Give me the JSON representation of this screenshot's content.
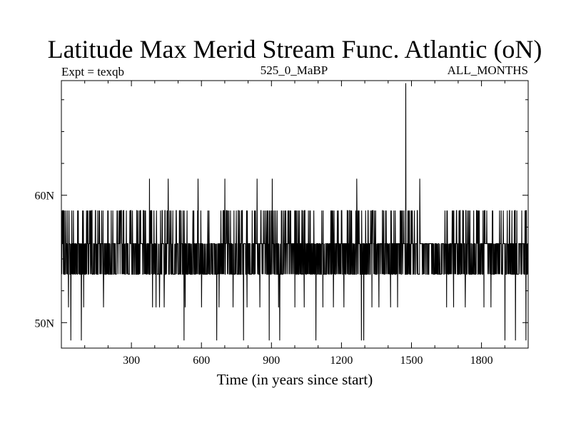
{
  "chart_data": {
    "type": "line",
    "title": "Latitude Max Merid Stream Func. Atlantic (oN)",
    "subtitle_left": "Expt = texqb",
    "subtitle_center": "525_0_MaBP",
    "subtitle_right": "ALL_MONTHS",
    "xlabel": "Time (in years since start)",
    "ylabel": "",
    "xlim": [
      0,
      2000
    ],
    "ylim": [
      48,
      69
    ],
    "x_ticks": [
      300,
      600,
      900,
      1200,
      1500,
      1800
    ],
    "x_tick_labels": [
      "300",
      "600",
      "900",
      "1200",
      "1500",
      "1800"
    ],
    "x_minor_step": 100,
    "y_ticks": [
      50,
      60
    ],
    "y_tick_labels": [
      "50N",
      "60N"
    ],
    "y_minor_step": 2.5,
    "grid": false,
    "line_color": "#000000",
    "series_levels": {
      "base_low": 53.8,
      "base_high": 56.2,
      "upper": 58.8,
      "dip": 51.2,
      "deep_dip": 48.6
    },
    "series_events": {
      "spikes_61": [
        377,
        457,
        585,
        700,
        838,
        903,
        1265,
        1535
      ],
      "spike_max": {
        "x": 1475,
        "y": 68.8
      },
      "dips_51": [
        30,
        95,
        180,
        390,
        405,
        420,
        440,
        530,
        600,
        675,
        735,
        795,
        850,
        930,
        1000,
        1040,
        1120,
        1165,
        1210,
        1330,
        1360,
        1410,
        1440,
        1650,
        1680,
        1730,
        1810,
        1840
      ],
      "dips_48": [
        40,
        85,
        525,
        665,
        780,
        890,
        935,
        1090,
        1285,
        1295,
        1900,
        1945,
        1990
      ]
    }
  }
}
